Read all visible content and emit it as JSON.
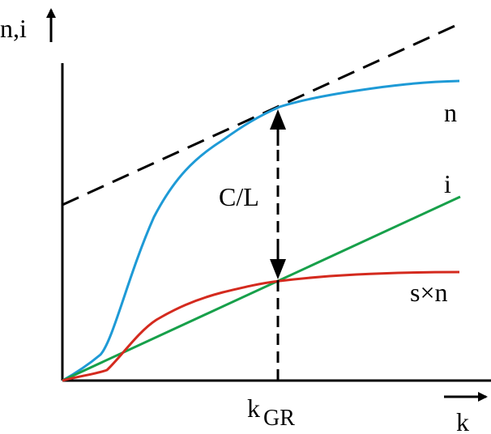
{
  "diagram": {
    "labels": {
      "y_axis": "n,i",
      "x_axis": "k",
      "x_marker_base": "k",
      "x_marker_sub": "GR",
      "gap": "C/L",
      "curve_n": "n",
      "curve_i": "i",
      "curve_sn": "s×n"
    },
    "colors": {
      "curve_n": "#1e9ad6",
      "curve_i": "#17a04a",
      "curve_sn": "#d42a1e",
      "axes": "#000000",
      "tangent": "#000000"
    }
  }
}
